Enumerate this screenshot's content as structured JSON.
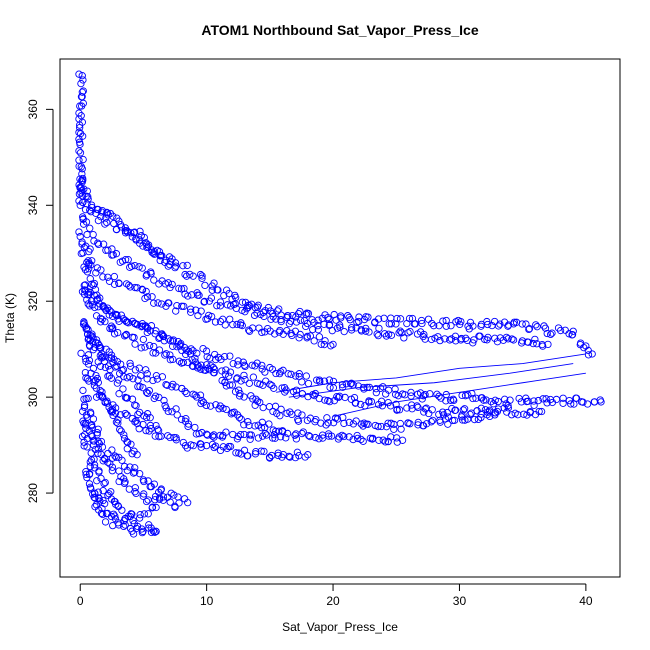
{
  "chart_data": {
    "type": "scatter",
    "title": "ATOM1 Northbound Sat_Vapor_Press_Ice",
    "xlabel": "Sat_Vapor_Press_Ice",
    "ylabel": "Theta (K)",
    "xlim": [
      -1.6,
      42.7
    ],
    "ylim": [
      262.5,
      370.5
    ],
    "xticks": [
      0,
      10,
      20,
      30,
      40
    ],
    "yticks": [
      280,
      300,
      320,
      340,
      360
    ],
    "grid": false,
    "legend": "none",
    "point_style": "open-circle",
    "color": "#0000ff",
    "approximate_profiles": [
      {
        "x": [
          0.0,
          0.0,
          0.0,
          0.0,
          0.0,
          0.0,
          0.0
        ],
        "y": [
          367,
          362,
          356,
          350,
          345,
          342,
          340
        ]
      },
      {
        "x": [
          0.0,
          0.5,
          1.5,
          3.0,
          4.5,
          5.5,
          6.5,
          7.5
        ],
        "y": [
          346,
          341,
          339,
          337,
          334,
          331,
          329,
          327
        ]
      },
      {
        "x": [
          0.0,
          1.0,
          2.5,
          4.0,
          6.0,
          8.0,
          10.0,
          12.0,
          15.0,
          18.0,
          22.0,
          26.0,
          31.0,
          35.0,
          39.0,
          40.5
        ],
        "y": [
          342,
          338,
          336,
          334,
          330,
          327,
          324,
          321,
          318,
          317,
          316,
          316,
          315,
          315,
          313,
          309
        ]
      },
      {
        "x": [
          0.0,
          1.0,
          2.5,
          4.5,
          6.5,
          9.0,
          12.0,
          15.0,
          18.0,
          22.0,
          26.0,
          30.0,
          34.0,
          37.0
        ],
        "y": [
          338,
          333,
          330,
          327,
          324,
          321,
          319,
          317,
          315,
          314,
          313,
          312,
          312,
          311
        ]
      },
      {
        "x": [
          0.0,
          1.0,
          2.0,
          4.0,
          6.0,
          8.5,
          11.0,
          14.0,
          17.0,
          20.0
        ],
        "y": [
          334,
          327,
          325,
          323,
          320,
          318,
          316,
          314,
          313,
          311
        ]
      },
      {
        "x": [
          0.2,
          1.5,
          3.5,
          5.5,
          7.5,
          10.0,
          13.0,
          16.0,
          19.0,
          22.0,
          25.0,
          28.0,
          31.0,
          34.0,
          37.0,
          39.5,
          41.2
        ],
        "y": [
          330,
          319,
          316,
          314,
          311,
          309,
          307,
          305,
          303,
          302,
          301,
          300,
          300,
          299,
          299,
          299,
          299
        ]
      },
      {
        "x": [
          0.2,
          1.0,
          2.5,
          5.0,
          7.5,
          10.0,
          13.0,
          16.0,
          19.0,
          22.0,
          25.0,
          28.0,
          31.0,
          34.0,
          36.5
        ],
        "y": [
          324,
          318,
          314,
          311,
          308,
          306,
          304,
          302,
          300,
          299,
          298,
          297,
          297,
          297,
          297
        ]
      },
      {
        "x": [
          0.2,
          2.0,
          4.0,
          6.0,
          8.0,
          10.0,
          12.0,
          14.0,
          15.5,
          17.0,
          19.0,
          21.0,
          23.0,
          25.0,
          27.0,
          29.0,
          31.0,
          33.0
        ],
        "y": [
          322,
          318,
          316,
          314,
          310,
          306,
          302,
          299,
          297,
          296,
          295,
          295,
          294,
          294,
          294,
          295,
          296,
          297
        ]
      },
      {
        "x": [
          0.2,
          1.5,
          3.0,
          5.0,
          7.0,
          8.5,
          10.0,
          11.5,
          13.0,
          14.5,
          16.0
        ],
        "y": [
          316,
          310,
          307,
          305,
          303,
          301,
          299,
          297,
          295,
          294,
          293
        ]
      },
      {
        "x": [
          0.5,
          2.0,
          3.5,
          5.0,
          6.5,
          8.0,
          9.0,
          10.5,
          12.0,
          13.5,
          15.0,
          17.0,
          20.0,
          23.0,
          25.5
        ],
        "y": [
          313,
          309,
          305,
          302,
          299,
          296,
          293,
          292,
          292,
          292,
          292,
          292,
          292,
          291,
          291
        ]
      },
      {
        "x": [
          0.5,
          1.5,
          3.0,
          4.5,
          5.5,
          6.5,
          7.5,
          8.5,
          9.5,
          11.0,
          12.5,
          14.0,
          15.5,
          17.0,
          18.0
        ],
        "y": [
          305,
          300,
          297,
          295,
          293,
          292,
          291,
          290,
          290,
          289,
          289,
          288,
          288,
          288,
          288
        ]
      },
      {
        "x": [
          0.3,
          1.0,
          1.8,
          2.5,
          3.3,
          4.0,
          4.8,
          5.5,
          6.2
        ],
        "y": [
          315,
          311,
          307,
          304,
          301,
          299,
          297,
          295,
          293
        ]
      },
      {
        "x": [
          0.3,
          1.0,
          1.8,
          2.6,
          3.2,
          3.8,
          4.5
        ],
        "y": [
          309,
          305,
          300,
          296,
          293,
          290,
          288
        ]
      },
      {
        "x": [
          0.2,
          0.8,
          1.5,
          2.5,
          3.5,
          4.5,
          5.5,
          6.5,
          7.5,
          8.5
        ],
        "y": [
          301,
          295,
          291,
          288,
          286,
          284,
          282,
          280,
          279,
          278
        ]
      },
      {
        "x": [
          0.2,
          0.8,
          1.5,
          2.5,
          3.5,
          4.5,
          5.5,
          6.5,
          7.5
        ],
        "y": [
          297,
          292,
          288,
          285,
          282,
          280,
          279,
          278,
          277
        ]
      },
      {
        "x": [
          0.2,
          0.8,
          1.5,
          2.0,
          2.5,
          3.0,
          3.5,
          4.0,
          4.5,
          5.0,
          5.5,
          6.0
        ],
        "y": [
          293,
          287,
          283,
          281,
          279,
          277,
          276,
          275,
          274,
          273,
          273,
          272
        ]
      },
      {
        "x": [
          0.5,
          1.0,
          1.5,
          2.0,
          2.5,
          3.0,
          3.5,
          4.0,
          4.5,
          5.0,
          5.5,
          6.0
        ],
        "y": [
          285,
          280,
          277,
          275,
          274,
          273,
          273,
          272,
          272,
          272,
          272,
          272
        ]
      },
      {
        "x": [
          1.0,
          2.0,
          3.0,
          4.0,
          5.0,
          6.0
        ],
        "y": [
          281,
          276,
          275,
          275,
          276,
          277
        ]
      }
    ],
    "approximate_connecting_segments": [
      {
        "x": [
          15.5,
          20.0,
          25.0,
          30.0,
          35.0,
          40.0
        ],
        "y": [
          301,
          303,
          304,
          306,
          307,
          309
        ]
      },
      {
        "x": [
          16.5,
          22.0,
          28.0,
          34.0,
          39.0
        ],
        "y": [
          300,
          302,
          303,
          305,
          307
        ]
      },
      {
        "x": [
          20.0,
          25.0,
          30.0,
          35.0,
          40.0
        ],
        "y": [
          296,
          299,
          301,
          303,
          305
        ]
      }
    ]
  }
}
